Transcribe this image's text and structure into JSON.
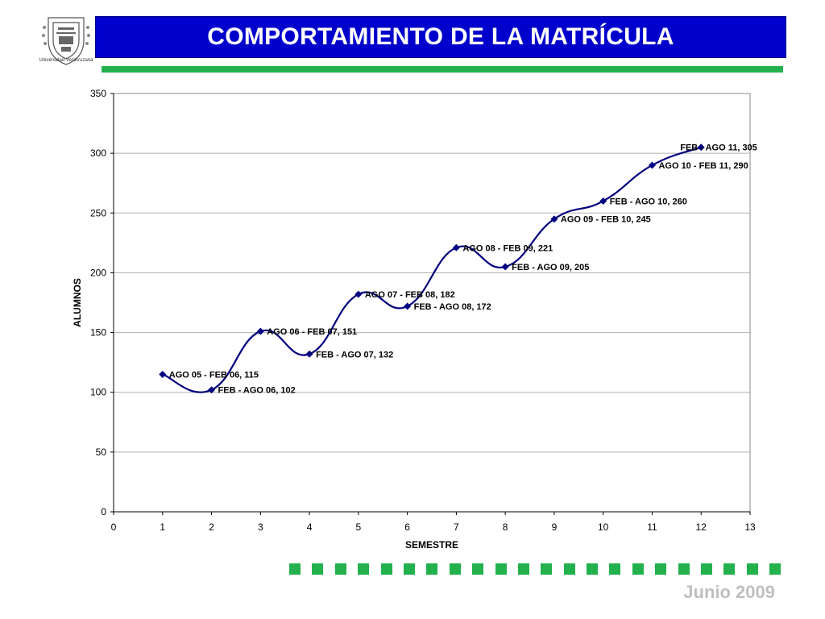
{
  "header": {
    "title": "COMPORTAMIENTO DE LA MATRÍCULA",
    "logo_caption": "Universidad Veracruzana"
  },
  "footer": {
    "date": "Junio 2009"
  },
  "colors": {
    "title_bg": "#0000cc",
    "accent_green": "#22b14c",
    "series": "#000080"
  },
  "chart_data": {
    "type": "line",
    "title": "",
    "xlabel": "SEMESTRE",
    "ylabel": "ALUMNOS",
    "xlim": [
      0,
      13
    ],
    "ylim": [
      0,
      350
    ],
    "xticks": [
      0,
      1,
      2,
      3,
      4,
      5,
      6,
      7,
      8,
      9,
      10,
      11,
      12,
      13
    ],
    "yticks": [
      0,
      50,
      100,
      150,
      200,
      250,
      300,
      350
    ],
    "grid": "horizontal",
    "smooth": true,
    "marker": "diamond",
    "series": [
      {
        "x": [
          1,
          2,
          3,
          4,
          5,
          6,
          7,
          8,
          9,
          10,
          11,
          12
        ],
        "values": [
          115,
          102,
          151,
          132,
          182,
          172,
          221,
          205,
          245,
          260,
          290,
          305
        ],
        "labels": [
          "AGO 05 - FEB 06, 115",
          "FEB - AGO 06, 102",
          "AGO 06 - FEB 07, 151",
          "FEB - AGO 07, 132",
          "AGO 07 - FEB 08, 182",
          "FEB - AGO 08, 172",
          "AGO 08 - FEB 09, 221",
          "FEB - AGO 09, 205",
          "AGO 09 - FEB 10, 245",
          "FEB - AGO 10, 260",
          "AGO 10 - FEB 11, 290",
          "FEB - AGO 11, 305"
        ]
      }
    ]
  }
}
